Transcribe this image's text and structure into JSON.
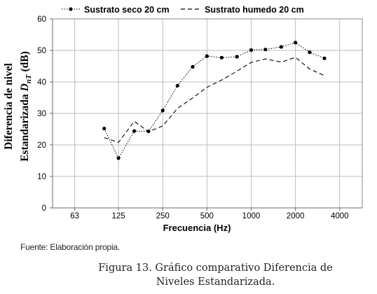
{
  "chart_data": {
    "type": "line",
    "title": "",
    "xlabel": "Frecuencia (Hz)",
    "ylabel_line1": "Diferencia de nivel",
    "ylabel_line2_prefix": "Estandarizada ",
    "ylabel_symbol": "D",
    "ylabel_subscript": "nT",
    "ylabel_unit": " (dB)",
    "x_scale": "log",
    "x_ticks": [
      "63",
      "125",
      "250",
      "500",
      "1000",
      "2000",
      "4000"
    ],
    "ylim": [
      0,
      60
    ],
    "y_ticks": [
      "0",
      "10",
      "20",
      "30",
      "40",
      "50",
      "60"
    ],
    "grid": true,
    "legend_position": "top",
    "x": [
      100,
      125,
      160,
      200,
      250,
      315,
      400,
      500,
      630,
      800,
      1000,
      1250,
      1600,
      2000,
      2500,
      3150
    ],
    "series": [
      {
        "name": "Sustrato seco 20 cm",
        "style": "dotted-markers",
        "color": "#000000",
        "values": [
          25.2,
          15.8,
          24.4,
          24.3,
          30.9,
          38.8,
          44.8,
          48.2,
          47.7,
          48.0,
          50.1,
          50.3,
          51.1,
          52.5,
          49.4,
          47.5
        ]
      },
      {
        "name": "Sustrato humedo 20 cm",
        "style": "dashed",
        "color": "#000000",
        "values": [
          22.3,
          20.8,
          27.5,
          24.2,
          26.0,
          31.6,
          34.9,
          38.3,
          40.6,
          43.4,
          46.2,
          47.3,
          46.3,
          47.8,
          44.1,
          42.0
        ]
      }
    ]
  },
  "source_note": "Fuente: Elaboración propia.",
  "caption": {
    "line1": "Figura 13. Gráfico comparativo Diferencia de",
    "line2": "Niveles Estandarizada."
  }
}
